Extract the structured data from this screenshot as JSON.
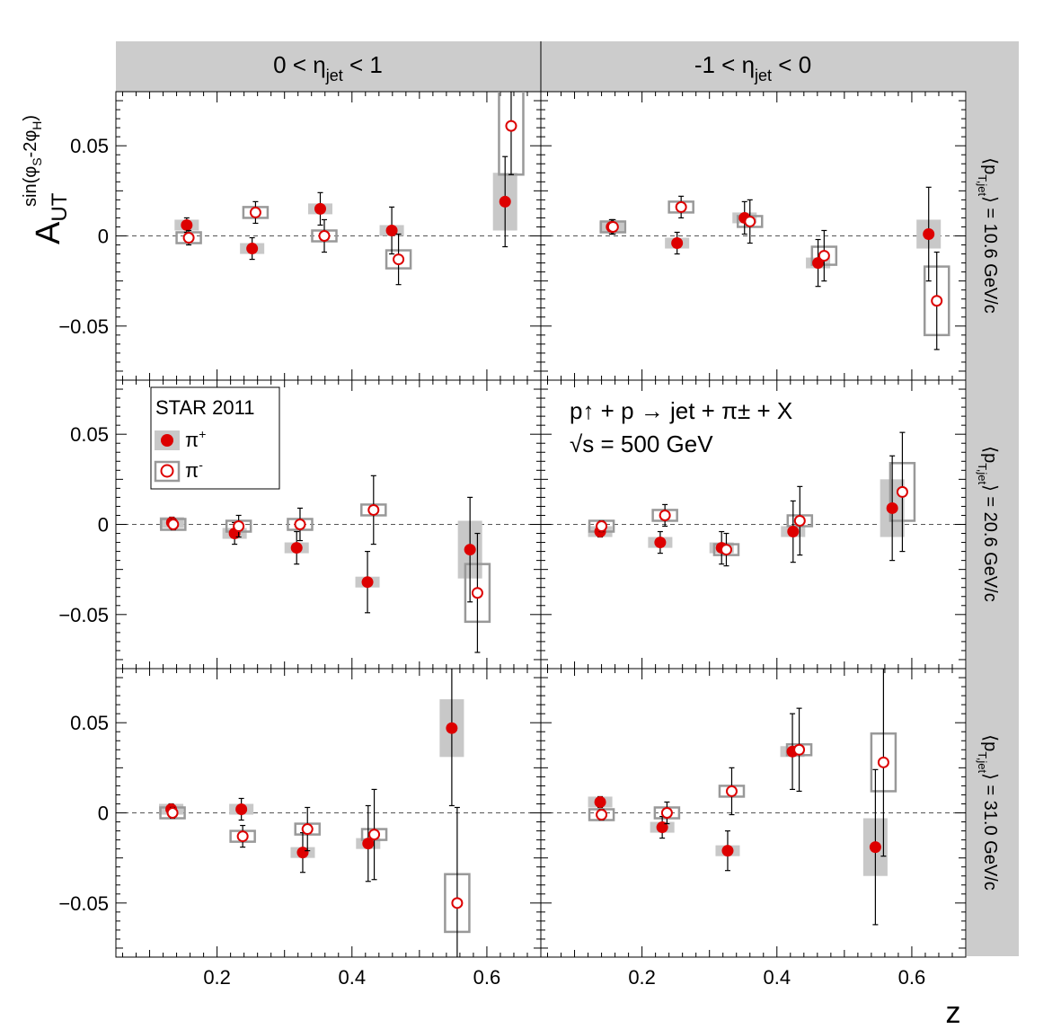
{
  "column_headers": [
    {
      "text": "0 < η",
      "sub": "jet",
      "suffix": " < 1"
    },
    {
      "text": "-1 < η",
      "sub": "jet",
      "suffix": " < 0"
    }
  ],
  "row_headers": [
    {
      "pre": "⟨p",
      "sub": "T,jet",
      "post": "⟩ = 10.6 GeV/c"
    },
    {
      "pre": "⟨p",
      "sub": "T,jet",
      "post": "⟩ = 20.6 GeV/c"
    },
    {
      "pre": "⟨p",
      "sub": "T,jet",
      "post": "⟩ = 31.0 GeV/c"
    }
  ],
  "y_axis_label": {
    "main": "A",
    "sub": "UT",
    "sup": "sin(φ",
    "sup_sub1": "S",
    "sup_mid": "-2φ",
    "sup_sub2": "H",
    "sup_end": ")"
  },
  "x_axis_label": "z",
  "y_ticks": [
    "0.05",
    "0",
    "−0.05"
  ],
  "x_ticks": [
    "0.2",
    "0.4",
    "0.6"
  ],
  "legend": {
    "title": "STAR 2011",
    "entries": [
      {
        "label": "π",
        "sup": "+"
      },
      {
        "label": "π",
        "sup": "-"
      }
    ]
  },
  "annotation": {
    "line1": "p↑ + p → jet + π± + X",
    "line2": "√s = 500 GeV"
  },
  "colors": {
    "pi_plus": "#dd0000",
    "pi_minus": "#dd0000",
    "syst_plus": "#c8c8c8",
    "syst_minus": "#999999",
    "header_bg": "#cccccc"
  },
  "chart_data": {
    "type": "scatter",
    "layout": "3x2 panels",
    "xlim": [
      0.05,
      0.68
    ],
    "ylim": [
      -0.08,
      0.08
    ],
    "xlabel": "z",
    "ylabel": "A_UT^{sin(φS-2φH)}",
    "reference_line": 0,
    "panels": [
      {
        "row": 0,
        "col": 0,
        "pi_plus": [
          [
            0.155,
            0.006,
            0.004,
            0.003
          ],
          [
            0.252,
            -0.007,
            0.006,
            0.003
          ],
          [
            0.353,
            0.015,
            0.009,
            0.003
          ],
          [
            0.459,
            0.003,
            0.013,
            0.003
          ],
          [
            0.627,
            0.019,
            0.025,
            0.016
          ]
        ],
        "pi_minus": [
          [
            0.158,
            -0.001,
            0.004,
            0.003
          ],
          [
            0.257,
            0.013,
            0.006,
            0.003
          ],
          [
            0.359,
            0.0,
            0.009,
            0.003
          ],
          [
            0.469,
            -0.013,
            0.014,
            0.005
          ],
          [
            0.636,
            0.061,
            0.027,
            0.027
          ]
        ]
      },
      {
        "row": 0,
        "col": 1,
        "pi_plus": [
          [
            0.155,
            0.005,
            0.004,
            0.003
          ],
          [
            0.252,
            -0.004,
            0.006,
            0.003
          ],
          [
            0.352,
            0.01,
            0.009,
            0.003
          ],
          [
            0.461,
            -0.015,
            0.013,
            0.003
          ],
          [
            0.625,
            0.001,
            0.026,
            0.008
          ]
        ],
        "pi_minus": [
          [
            0.157,
            0.005,
            0.004,
            0.003
          ],
          [
            0.258,
            0.016,
            0.006,
            0.003
          ],
          [
            0.36,
            0.008,
            0.012,
            0.003
          ],
          [
            0.47,
            -0.011,
            0.014,
            0.005
          ],
          [
            0.637,
            -0.036,
            0.027,
            0.019
          ]
        ]
      },
      {
        "row": 1,
        "col": 0,
        "pi_plus": [
          [
            0.133,
            0.001,
            0.003,
            0.003
          ],
          [
            0.226,
            -0.005,
            0.006,
            0.003
          ],
          [
            0.318,
            -0.013,
            0.009,
            0.003
          ],
          [
            0.423,
            -0.032,
            0.017,
            0.003
          ],
          [
            0.575,
            -0.014,
            0.029,
            0.016
          ]
        ],
        "pi_minus": [
          [
            0.135,
            0.0,
            0.003,
            0.003
          ],
          [
            0.232,
            -0.001,
            0.006,
            0.003
          ],
          [
            0.323,
            0.0,
            0.009,
            0.003
          ],
          [
            0.432,
            0.008,
            0.019,
            0.003
          ],
          [
            0.586,
            -0.038,
            0.033,
            0.016
          ]
        ]
      },
      {
        "row": 1,
        "col": 1,
        "pi_plus": [
          [
            0.138,
            -0.004,
            0.003,
            0.003
          ],
          [
            0.227,
            -0.01,
            0.006,
            0.003
          ],
          [
            0.318,
            -0.013,
            0.009,
            0.003
          ],
          [
            0.424,
            -0.004,
            0.017,
            0.003
          ],
          [
            0.571,
            0.009,
            0.029,
            0.016
          ]
        ],
        "pi_minus": [
          [
            0.14,
            -0.001,
            0.003,
            0.003
          ],
          [
            0.234,
            0.005,
            0.006,
            0.003
          ],
          [
            0.325,
            -0.014,
            0.009,
            0.003
          ],
          [
            0.434,
            0.002,
            0.019,
            0.003
          ],
          [
            0.586,
            0.018,
            0.033,
            0.016
          ]
        ]
      },
      {
        "row": 2,
        "col": 0,
        "pi_plus": [
          [
            0.132,
            0.002,
            0.003,
            0.003
          ],
          [
            0.236,
            0.002,
            0.006,
            0.003
          ],
          [
            0.327,
            -0.022,
            0.011,
            0.003
          ],
          [
            0.424,
            -0.017,
            0.021,
            0.003
          ],
          [
            0.548,
            0.047,
            0.043,
            0.016
          ]
        ],
        "pi_minus": [
          [
            0.134,
            0.0,
            0.003,
            0.003
          ],
          [
            0.238,
            -0.013,
            0.006,
            0.003
          ],
          [
            0.334,
            -0.009,
            0.012,
            0.003
          ],
          [
            0.433,
            -0.012,
            0.025,
            0.003
          ],
          [
            0.556,
            -0.05,
            0.053,
            0.016
          ]
        ]
      },
      {
        "row": 2,
        "col": 1,
        "pi_plus": [
          [
            0.138,
            0.006,
            0.003,
            0.003
          ],
          [
            0.23,
            -0.008,
            0.006,
            0.003
          ],
          [
            0.327,
            -0.021,
            0.011,
            0.003
          ],
          [
            0.423,
            0.034,
            0.021,
            0.003
          ],
          [
            0.546,
            -0.019,
            0.043,
            0.016
          ]
        ],
        "pi_minus": [
          [
            0.14,
            -0.001,
            0.003,
            0.003
          ],
          [
            0.237,
            0.0,
            0.006,
            0.003
          ],
          [
            0.333,
            0.012,
            0.013,
            0.003
          ],
          [
            0.433,
            0.035,
            0.023,
            0.003
          ],
          [
            0.558,
            0.028,
            0.052,
            0.016
          ]
        ]
      }
    ],
    "point_format": "[z, A_UT, stat_err, syst_err]",
    "legend_position": "top-left of middle-left panel"
  }
}
